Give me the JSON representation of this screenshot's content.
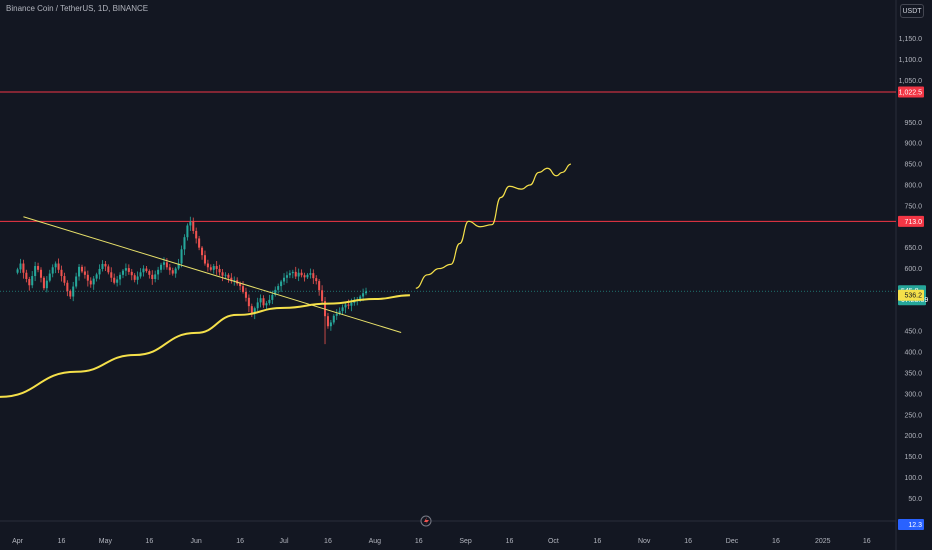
{
  "header": {
    "title": "Binance Coin / TetherUS, 1D, BINANCE",
    "currency": "USDT"
  },
  "colors": {
    "background": "#131722",
    "up": "#26a69a",
    "down": "#ef5350",
    "resistance": "#f23645",
    "trend": "#e8e06a",
    "ma": "#f5e04a",
    "price_line": "#26a69a"
  },
  "chart_data": {
    "type": "candlestick",
    "y_axis": {
      "ticks": [
        50,
        100,
        150,
        200,
        250,
        300,
        350,
        400,
        450,
        600,
        650,
        750,
        800,
        850,
        900,
        950,
        1050,
        1100,
        1150
      ],
      "tick_labels": [
        "50.0",
        "100.0",
        "150.0",
        "200.0",
        "250.0",
        "300.0",
        "350.0",
        "400.0",
        "450.0",
        "600.0",
        "650.0",
        "750.0",
        "800.0",
        "850.0",
        "900.0",
        "950.0",
        "1,050.0",
        "1,100.0",
        "1,150.0"
      ],
      "range": [
        15,
        1190
      ]
    },
    "x_axis": {
      "tick_labels": [
        "Apr",
        "16",
        "May",
        "16",
        "Jun",
        "16",
        "Jul",
        "16",
        "Aug",
        "16",
        "Sep",
        "16",
        "Oct",
        "16",
        "Nov",
        "16",
        "Dec",
        "16",
        "2025",
        "16"
      ],
      "tick_days": [
        0,
        15,
        30,
        45,
        61,
        76,
        91,
        106,
        122,
        137,
        153,
        168,
        183,
        198,
        214,
        229,
        244,
        259,
        275,
        290
      ],
      "range_days": [
        -6,
        300
      ]
    },
    "candles_close": [
      598,
      612,
      590,
      575,
      560,
      582,
      606,
      597,
      578,
      553,
      571,
      588,
      603,
      612,
      597,
      582,
      566,
      546,
      533,
      557,
      581,
      604,
      593,
      585,
      571,
      562,
      576,
      586,
      599,
      611,
      605,
      591,
      578,
      566,
      574,
      585,
      595,
      601,
      592,
      584,
      573,
      581,
      591,
      600,
      594,
      585,
      575,
      586,
      597,
      609,
      615,
      603,
      596,
      588,
      600,
      612,
      646,
      675,
      703,
      712,
      690,
      672,
      650,
      632,
      612,
      603,
      597,
      606,
      599,
      591,
      583,
      585,
      578,
      570,
      572,
      564,
      558,
      544,
      530,
      510,
      492,
      505,
      519,
      529,
      512,
      517,
      525,
      537,
      549,
      558,
      569,
      578,
      584,
      589,
      592,
      581,
      590,
      584,
      579,
      585,
      589,
      577,
      570,
      548,
      522,
      486,
      462,
      471,
      487,
      492,
      498,
      507,
      514,
      511,
      518,
      524,
      526,
      533,
      541,
      545
    ],
    "resistance_levels": [
      {
        "value": 1022.5,
        "label": "1,022.5"
      },
      {
        "value": 713.0,
        "label": "713.0"
      }
    ],
    "current_price": {
      "value": 545.8,
      "label": "545.8",
      "countdown": "07:28:09"
    },
    "ma_label": {
      "value": 536.2,
      "label": "536.2"
    },
    "indicator_label": "12.3",
    "trendline_down": {
      "from": [
        2,
        724
      ],
      "to": [
        131,
        447
      ]
    },
    "ma_curve": [
      [
        -6,
        293
      ],
      [
        20,
        353
      ],
      [
        40,
        393
      ],
      [
        61,
        446
      ],
      [
        75,
        489
      ],
      [
        91,
        506
      ],
      [
        106,
        516
      ],
      [
        122,
        527
      ],
      [
        134,
        536
      ]
    ],
    "projection_path": [
      [
        136,
        553
      ],
      [
        140,
        585
      ],
      [
        144,
        600
      ],
      [
        148,
        610
      ],
      [
        151,
        660
      ],
      [
        154,
        713
      ],
      [
        158,
        700
      ],
      [
        162,
        705
      ],
      [
        165,
        770
      ],
      [
        168,
        797
      ],
      [
        172,
        790
      ],
      [
        175,
        800
      ],
      [
        178,
        830
      ],
      [
        181,
        840
      ],
      [
        184,
        822
      ],
      [
        186,
        830
      ],
      [
        189,
        850
      ]
    ]
  }
}
